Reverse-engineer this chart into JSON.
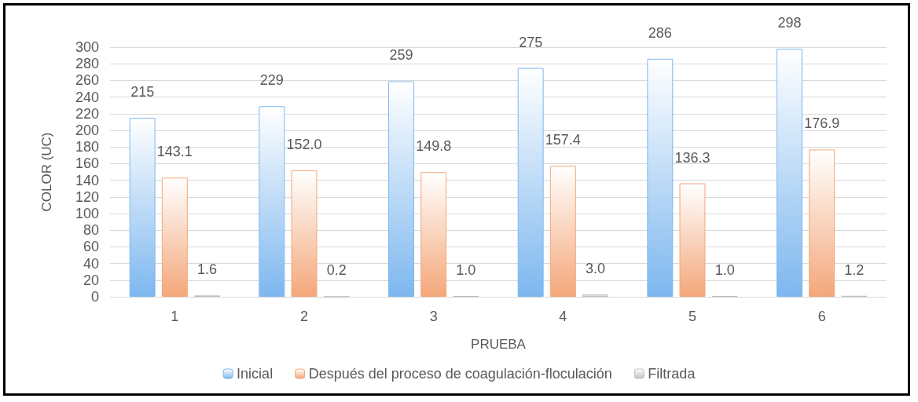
{
  "chart_data": {
    "type": "bar",
    "xlabel": "PRUEBA",
    "ylabel": "COLOR (UC)",
    "categories": [
      "1",
      "2",
      "3",
      "4",
      "5",
      "6"
    ],
    "series": [
      {
        "name": "Inicial",
        "color": "#7db7ef",
        "values": [
          215,
          229,
          259,
          275,
          286,
          298
        ],
        "value_labels": [
          "215",
          "229",
          "259",
          "275",
          "286",
          "298"
        ]
      },
      {
        "name": "Después del proceso de coagulación-floculación",
        "color": "#f4a77a",
        "values": [
          143.1,
          152.0,
          149.8,
          157.4,
          136.3,
          176.9
        ],
        "value_labels": [
          "143.1",
          "152.0",
          "149.8",
          "157.4",
          "136.3",
          "176.9"
        ]
      },
      {
        "name": "Filtrada",
        "color": "#bfbfbf",
        "values": [
          1.6,
          0.2,
          1.0,
          3.0,
          1.0,
          1.2
        ],
        "value_labels": [
          "1.6",
          "0.2",
          "1.0",
          "3.0",
          "1.0",
          "1.2"
        ]
      }
    ],
    "ylim": [
      0,
      300
    ],
    "yticks": [
      0,
      20,
      40,
      60,
      80,
      100,
      120,
      140,
      160,
      180,
      200,
      220,
      240,
      260,
      280,
      300
    ],
    "grid": "y",
    "legend": "bottom"
  }
}
